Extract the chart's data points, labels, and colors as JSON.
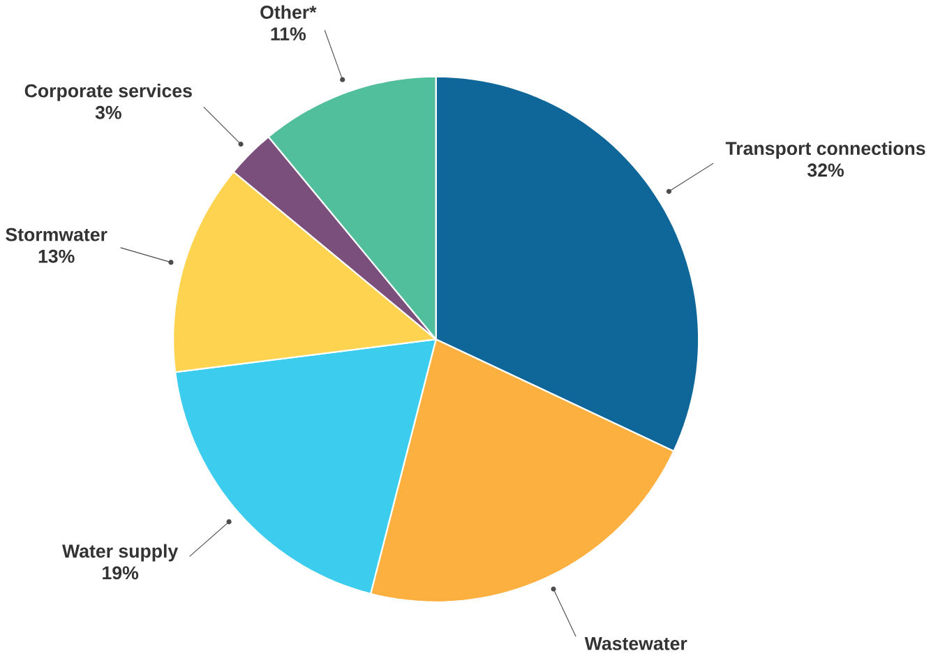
{
  "chart_data": {
    "type": "pie",
    "categories": [
      "Transport connections",
      "Wastewater",
      "Water supply",
      "Stormwater",
      "Corporate services",
      "Other*"
    ],
    "values": [
      32,
      22,
      19,
      13,
      3,
      11
    ],
    "colors": [
      "#0f6699",
      "#fbb040",
      "#3ccdee",
      "#fdd34f",
      "#7b4f7b",
      "#52bf9c"
    ],
    "value_labels": [
      "32%",
      null,
      "19%",
      "13%",
      "3%",
      "11%"
    ]
  }
}
